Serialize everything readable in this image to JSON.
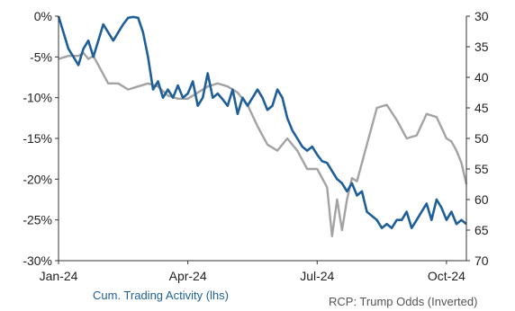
{
  "chart_data": {
    "type": "line",
    "title": "",
    "x_ticks": [
      "Jan-24",
      "Apr-24",
      "Jul-24",
      "Oct-24"
    ],
    "x_range": [
      0,
      41
    ],
    "y_left": {
      "ticks": [
        "0%",
        "-5%",
        "-10%",
        "-15%",
        "-20%",
        "-25%",
        "-30%"
      ],
      "range": [
        -30,
        0
      ],
      "unit": "%"
    },
    "y_right": {
      "ticks": [
        "30",
        "35",
        "40",
        "45",
        "50",
        "55",
        "60",
        "65",
        "70"
      ],
      "range": [
        30,
        70
      ],
      "inverted": true
    },
    "grid": false,
    "legend_position": "bottom",
    "series": [
      {
        "name": "Cum. Trading Activity (lhs)",
        "axis": "left",
        "color": "#1f5f99",
        "x": [
          0,
          0.5,
          1,
          1.5,
          2,
          2.5,
          3,
          3.5,
          4,
          4.5,
          5,
          5.5,
          6,
          6.5,
          7,
          7.5,
          8,
          8.5,
          9,
          9.5,
          10,
          10.5,
          11,
          11.5,
          12,
          12.5,
          13,
          13.5,
          14,
          14.5,
          15,
          15.5,
          16,
          16.5,
          17,
          17.5,
          18,
          18.5,
          19,
          19.5,
          20,
          20.5,
          21,
          21.5,
          22,
          22.5,
          23,
          23.5,
          24,
          24.5,
          25,
          25.5,
          26,
          26.5,
          27,
          27.5,
          28,
          28.5,
          29,
          29.5,
          30,
          30.5,
          31,
          31.5,
          32,
          32.5,
          33,
          33.5,
          34,
          34.5,
          35,
          35.5,
          36,
          36.5,
          37,
          37.5,
          38,
          38.5,
          39,
          39.5,
          40,
          40.5,
          41
        ],
        "values": [
          0,
          -2,
          -4,
          -5,
          -6,
          -4,
          -3,
          -5,
          -3,
          -1,
          -2,
          -3,
          -2,
          -1,
          -0.2,
          -0.1,
          -0.2,
          -2,
          -5,
          -9,
          -8,
          -10,
          -9,
          -10,
          -8.5,
          -10,
          -9.5,
          -8,
          -11,
          -10,
          -7,
          -10,
          -9.5,
          -10.2,
          -11,
          -9,
          -12,
          -10,
          -11,
          -10,
          -9,
          -10,
          -11.5,
          -11,
          -9,
          -10,
          -12.5,
          -14,
          -15,
          -16,
          -16.5,
          -16,
          -17,
          -17.8,
          -18,
          -19,
          -20,
          -20.5,
          -21.5,
          -20.5,
          -22,
          -21.5,
          -24,
          -24.5,
          -25,
          -26,
          -25.5,
          -26,
          -25,
          -25,
          -24,
          -26,
          -25,
          -24,
          -23,
          -25,
          -22.5,
          -23.5,
          -25,
          -24,
          -25.5,
          -25,
          -25.5
        ]
      },
      {
        "name": "RCP: Trump Odds (Inverted)",
        "axis": "right",
        "color": "#a3a3a3",
        "x": [
          0,
          1,
          2,
          2.5,
          3,
          3.5,
          4,
          5,
          6,
          7,
          8,
          9,
          10,
          11,
          12,
          13,
          14,
          15,
          16,
          17,
          18,
          19,
          20,
          21,
          22,
          23,
          24,
          25,
          26,
          27,
          27.5,
          28,
          28.5,
          29,
          29.5,
          30,
          31,
          32,
          33,
          34,
          35,
          36,
          37,
          38,
          39,
          39.5,
          40,
          40.5,
          41
        ],
        "values": [
          37,
          36.5,
          36.5,
          36,
          37,
          36.5,
          38,
          41,
          41,
          42,
          41.5,
          41,
          41.5,
          43,
          43.5,
          43.5,
          42.5,
          41.5,
          41,
          41.5,
          42.5,
          44.5,
          48,
          51,
          52,
          50,
          52,
          55,
          55,
          58,
          66,
          60,
          65,
          60,
          56.5,
          57,
          51,
          45,
          44.5,
          47,
          50,
          49.5,
          46,
          46.5,
          50,
          50.5,
          52,
          54,
          57.5
        ]
      }
    ]
  }
}
